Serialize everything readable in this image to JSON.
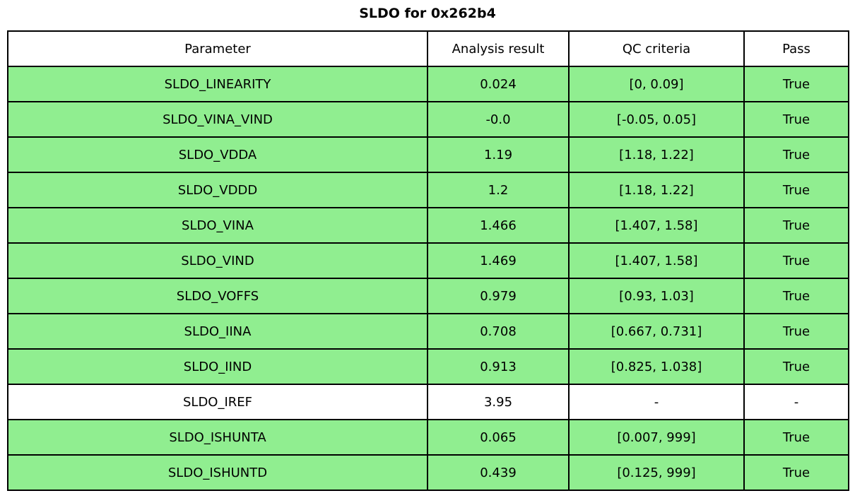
{
  "title": "SLDO for 0x262b4",
  "colors": {
    "pass_row_bg": "#90EE90",
    "neutral_row_bg": "#ffffff",
    "border": "#000000",
    "text": "#000000"
  },
  "chart_data": {
    "type": "table",
    "title": "SLDO for 0x262b4",
    "columns": [
      "Parameter",
      "Analysis result",
      "QC criteria",
      "Pass"
    ],
    "rows": [
      {
        "param": "SLDO_LINEARITY",
        "result": "0.024",
        "criteria": "[0, 0.09]",
        "pass": "True",
        "highlight": "green"
      },
      {
        "param": "SLDO_VINA_VIND",
        "result": "-0.0",
        "criteria": "[-0.05, 0.05]",
        "pass": "True",
        "highlight": "green"
      },
      {
        "param": "SLDO_VDDA",
        "result": "1.19",
        "criteria": "[1.18, 1.22]",
        "pass": "True",
        "highlight": "green"
      },
      {
        "param": "SLDO_VDDD",
        "result": "1.2",
        "criteria": "[1.18, 1.22]",
        "pass": "True",
        "highlight": "green"
      },
      {
        "param": "SLDO_VINA",
        "result": "1.466",
        "criteria": "[1.407, 1.58]",
        "pass": "True",
        "highlight": "green"
      },
      {
        "param": "SLDO_VIND",
        "result": "1.469",
        "criteria": "[1.407, 1.58]",
        "pass": "True",
        "highlight": "green"
      },
      {
        "param": "SLDO_VOFFS",
        "result": "0.979",
        "criteria": "[0.93, 1.03]",
        "pass": "True",
        "highlight": "green"
      },
      {
        "param": "SLDO_IINA",
        "result": "0.708",
        "criteria": "[0.667, 0.731]",
        "pass": "True",
        "highlight": "green"
      },
      {
        "param": "SLDO_IIND",
        "result": "0.913",
        "criteria": "[0.825, 1.038]",
        "pass": "True",
        "highlight": "green"
      },
      {
        "param": "SLDO_IREF",
        "result": "3.95",
        "criteria": "-",
        "pass": "-",
        "highlight": "white"
      },
      {
        "param": "SLDO_ISHUNTA",
        "result": "0.065",
        "criteria": "[0.007, 999]",
        "pass": "True",
        "highlight": "green"
      },
      {
        "param": "SLDO_ISHUNTD",
        "result": "0.439",
        "criteria": "[0.125, 999]",
        "pass": "True",
        "highlight": "green"
      }
    ]
  }
}
